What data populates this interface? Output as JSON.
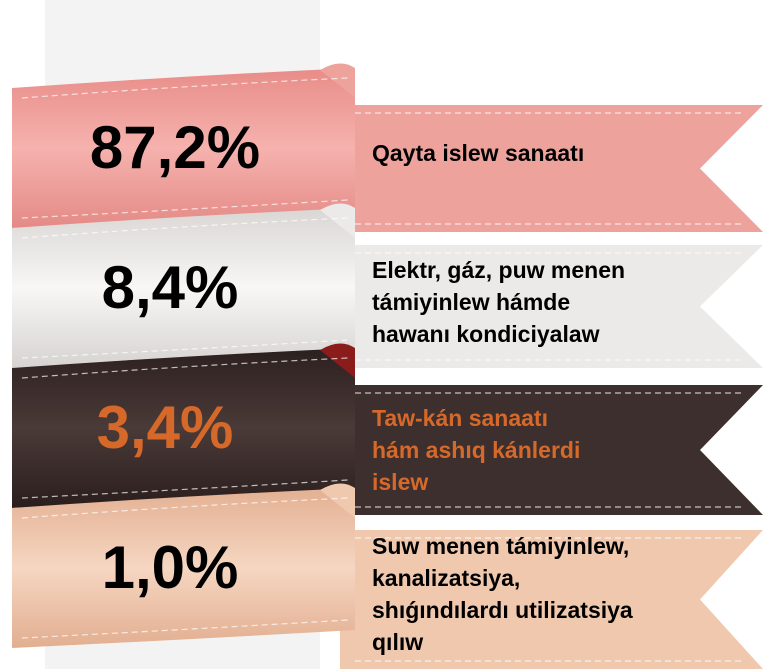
{
  "items": [
    {
      "value": "87,2%",
      "lines": [
        "Qayta islew sanaatı"
      ]
    },
    {
      "value": "8,4%",
      "lines": [
        "Elektr, gáz, puw menen",
        "támiyinlew hámde",
        "hawanı kondiciyalaw"
      ]
    },
    {
      "value": "3,4%",
      "lines": [
        "Taw-kán sanaatı",
        "hám ashıq kánlerdi",
        "islew"
      ]
    },
    {
      "value": "1,0%",
      "lines": [
        "Suw menen támiyinlew,",
        "kanalizatsiya,",
        "shıǵındılardı utilizatsiya",
        "qılıw"
      ]
    }
  ]
}
